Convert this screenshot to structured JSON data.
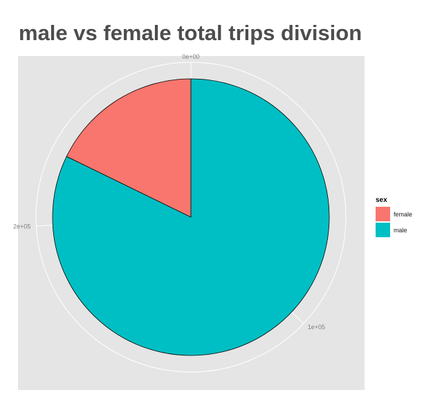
{
  "chart_data": {
    "type": "pie",
    "title": "male vs female total trips division",
    "legend_title": "sex",
    "legend_position": "right",
    "theta_ticks": [
      "0e+00",
      "1e+05",
      "2e+05"
    ],
    "theta_tick_values": [
      0,
      100000,
      200000
    ],
    "slices": [
      {
        "label": "female",
        "value": 48000,
        "color": "#f8766d"
      },
      {
        "label": "male",
        "value": 222000,
        "color": "#00bfc4"
      }
    ],
    "background_color": "#e5e5e5",
    "grid": true
  }
}
